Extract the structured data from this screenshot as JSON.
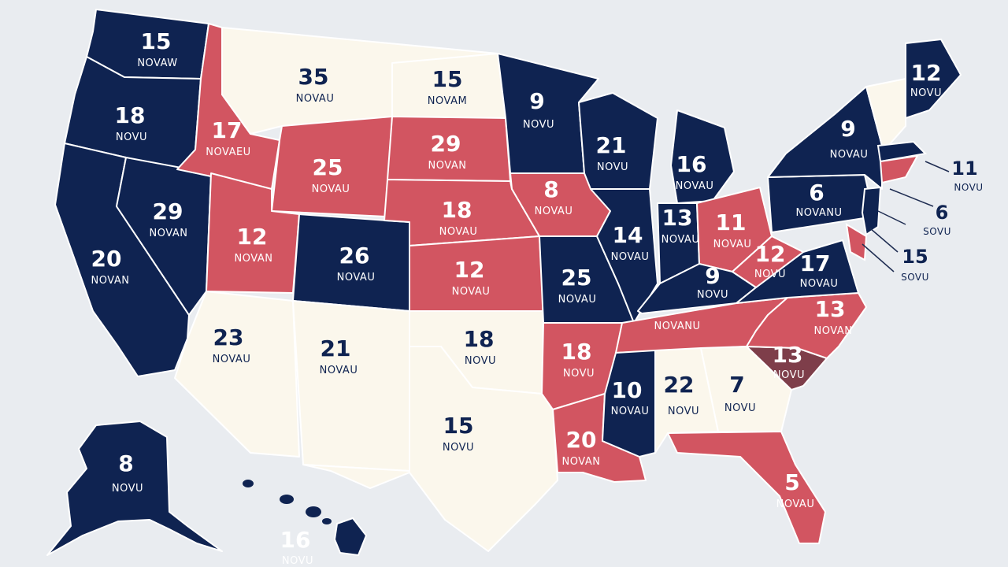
{
  "colors": {
    "background": "#e9ecf0",
    "dark": "#0f2351",
    "red": "#d25561",
    "cream": "#fbf7ec",
    "maroon": "#7e3e4a"
  },
  "states": [
    {
      "id": "wa",
      "number": "15",
      "sub": "NOVAW",
      "fill": "dark"
    },
    {
      "id": "or",
      "number": "18",
      "sub": "NOVU",
      "fill": "dark"
    },
    {
      "id": "ca",
      "number": "20",
      "sub": "NOVAN",
      "fill": "dark"
    },
    {
      "id": "nv",
      "number": "29",
      "sub": "NOVAN",
      "fill": "dark"
    },
    {
      "id": "id",
      "number": "17",
      "sub": "NOVAEU",
      "fill": "red"
    },
    {
      "id": "mt",
      "number": "35",
      "sub": "NOVAU",
      "fill": "cream"
    },
    {
      "id": "wy",
      "number": "25",
      "sub": "NOVAU",
      "fill": "red"
    },
    {
      "id": "ut",
      "number": "12",
      "sub": "NOVAN",
      "fill": "red"
    },
    {
      "id": "co",
      "number": "26",
      "sub": "NOVAU",
      "fill": "dark"
    },
    {
      "id": "az",
      "number": "23",
      "sub": "NOVAU",
      "fill": "cream"
    },
    {
      "id": "nm",
      "number": "21",
      "sub": "NOVAU",
      "fill": "cream"
    },
    {
      "id": "nd",
      "number": "15",
      "sub": "NOVAM",
      "fill": "cream"
    },
    {
      "id": "sd",
      "number": "29",
      "sub": "NOVAN",
      "fill": "red"
    },
    {
      "id": "ne",
      "number": "18",
      "sub": "NOVAU",
      "fill": "red"
    },
    {
      "id": "ks",
      "number": "12",
      "sub": "NOVAU",
      "fill": "red"
    },
    {
      "id": "ok",
      "number": "18",
      "sub": "NOVU",
      "fill": "cream"
    },
    {
      "id": "tx",
      "number": "15",
      "sub": "NOVU",
      "fill": "cream"
    },
    {
      "id": "mn",
      "number": "9",
      "sub": "NOVU",
      "fill": "dark"
    },
    {
      "id": "ia",
      "number": "8",
      "sub": "NOVAU",
      "fill": "red"
    },
    {
      "id": "mo",
      "number": "25",
      "sub": "NOVAU",
      "fill": "dark"
    },
    {
      "id": "ar",
      "number": "18",
      "sub": "NOVU",
      "fill": "red"
    },
    {
      "id": "la",
      "number": "20",
      "sub": "NOVAN",
      "fill": "red"
    },
    {
      "id": "wi",
      "number": "21",
      "sub": "NOVU",
      "fill": "dark"
    },
    {
      "id": "il",
      "number": "14",
      "sub": "NOVAU",
      "fill": "dark"
    },
    {
      "id": "mi",
      "number": "16",
      "sub": "NOVAU",
      "fill": "dark"
    },
    {
      "id": "in",
      "number": "13",
      "sub": "NOVAU",
      "fill": "dark"
    },
    {
      "id": "oh",
      "number": "11",
      "sub": "NOVAU",
      "fill": "red"
    },
    {
      "id": "ky",
      "number": "9",
      "sub": "NOVU",
      "fill": "dark"
    },
    {
      "id": "tn",
      "number": "",
      "sub": "NOVANU",
      "fill": "red"
    },
    {
      "id": "ms",
      "number": "10",
      "sub": "NOVAU",
      "fill": "dark"
    },
    {
      "id": "al",
      "number": "22",
      "sub": "NOVU",
      "fill": "cream"
    },
    {
      "id": "ga",
      "number": "7",
      "sub": "NOVU",
      "fill": "cream"
    },
    {
      "id": "fl",
      "number": "5",
      "sub": "NOVAU",
      "fill": "red"
    },
    {
      "id": "sc",
      "number": "13",
      "sub": "NOVU",
      "fill": "maroon"
    },
    {
      "id": "nc",
      "number": "13",
      "sub": "NOVAN",
      "fill": "red"
    },
    {
      "id": "va",
      "number": "17",
      "sub": "NOVAU",
      "fill": "dark"
    },
    {
      "id": "wv",
      "number": "12",
      "sub": "NOVU",
      "fill": "red"
    },
    {
      "id": "pa",
      "number": "6",
      "sub": "NOVANU",
      "fill": "dark"
    },
    {
      "id": "ny",
      "number": "9",
      "sub": "NOVAU",
      "fill": "dark"
    },
    {
      "id": "me",
      "number": "12",
      "sub": "NOVU",
      "fill": "dark"
    },
    {
      "id": "ak",
      "number": "8",
      "sub": "NOVU",
      "fill": "dark"
    },
    {
      "id": "hi",
      "number": "16",
      "sub": "NOVU",
      "fill": "dark"
    }
  ],
  "callouts": [
    {
      "id": "ne-11",
      "number": "11",
      "sub": "NOVU"
    },
    {
      "id": "ne-6",
      "number": "6",
      "sub": "SOVU"
    },
    {
      "id": "ne-15",
      "number": "15",
      "sub": "SOVU"
    }
  ]
}
